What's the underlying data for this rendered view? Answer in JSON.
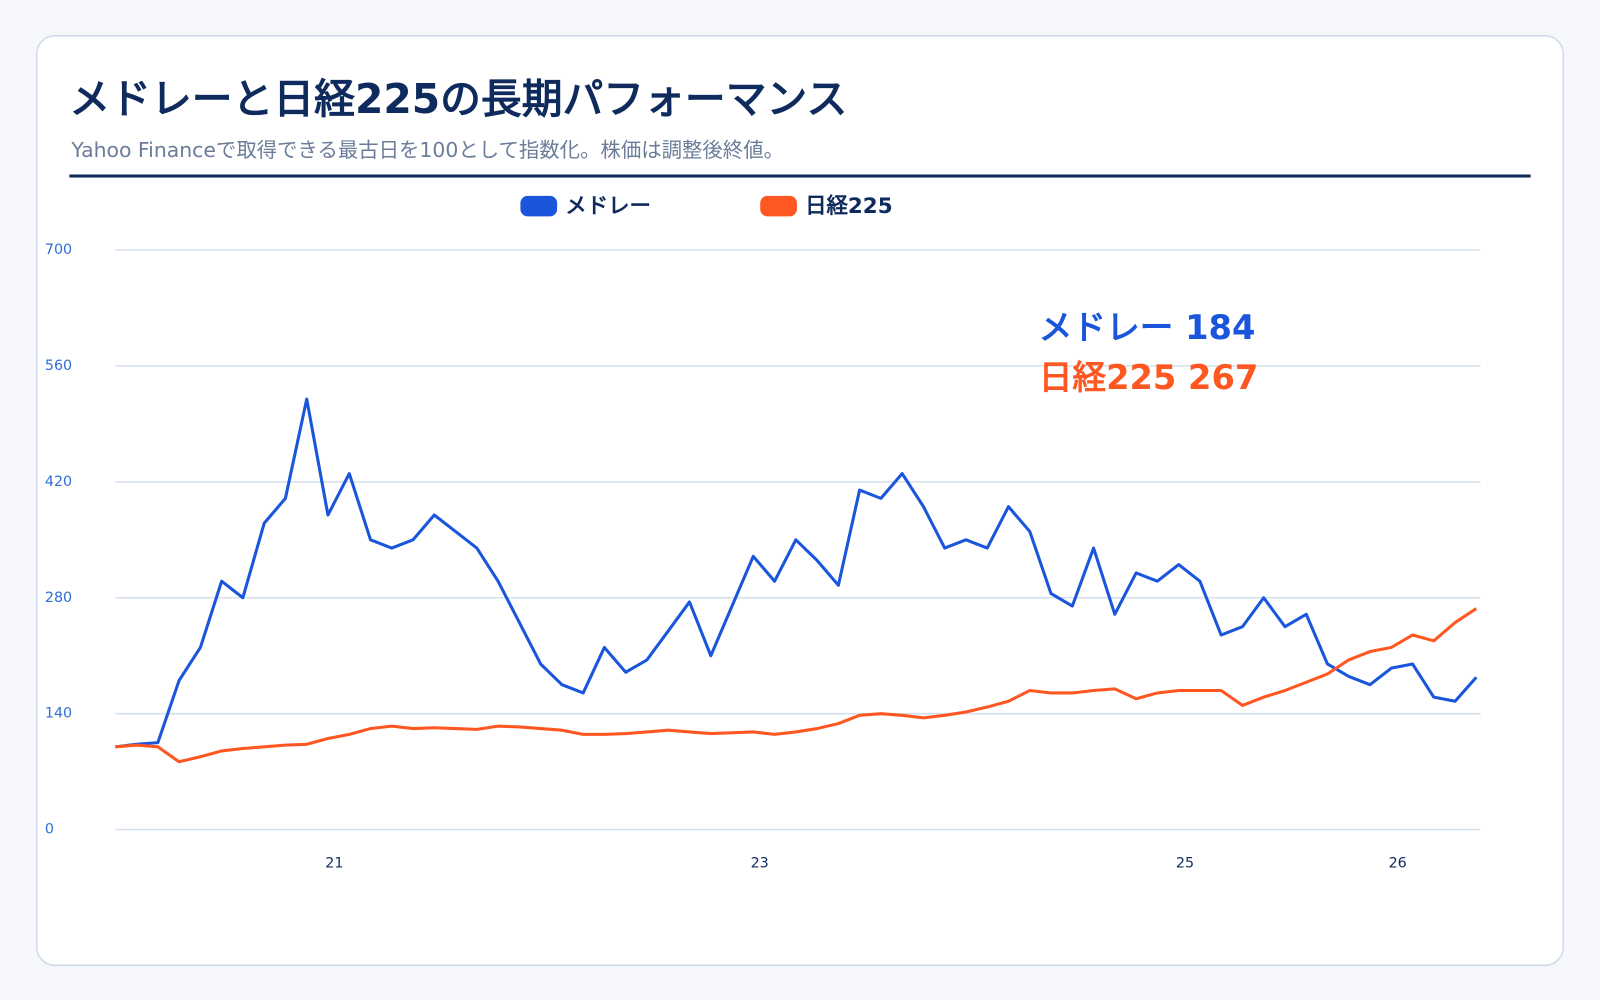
{
  "chart_data": {
    "type": "line",
    "title": "メドレーと日経225の長期パフォーマンス",
    "subtitle": "Yahoo Financeで取得できる最古日を100として指数化。株価は調整後終値。",
    "annotations": [
      "メドレー 184",
      "日経225 267"
    ],
    "x": [
      19.97,
      20.07,
      20.17,
      20.27,
      20.37,
      20.47,
      20.57,
      20.67,
      20.77,
      20.87,
      20.97,
      21.07,
      21.17,
      21.27,
      21.37,
      21.47,
      21.57,
      21.67,
      21.77,
      21.87,
      21.97,
      22.07,
      22.17,
      22.27,
      22.37,
      22.47,
      22.57,
      22.67,
      22.77,
      22.87,
      22.97,
      23.07,
      23.17,
      23.27,
      23.37,
      23.47,
      23.57,
      23.67,
      23.77,
      23.87,
      23.97,
      24.07,
      24.17,
      24.27,
      24.37,
      24.47,
      24.57,
      24.67,
      24.77,
      24.87,
      24.97,
      25.07,
      25.17,
      25.27,
      25.37,
      25.47,
      25.57,
      25.67,
      25.77,
      25.87,
      25.97,
      26.07,
      26.17,
      26.27,
      26.37
    ],
    "series": [
      {
        "name": "メドレー",
        "color": "#1a56db",
        "values": [
          100,
          103,
          105,
          180,
          220,
          300,
          280,
          370,
          400,
          520,
          380,
          430,
          350,
          340,
          350,
          380,
          360,
          340,
          300,
          250,
          200,
          175,
          165,
          220,
          190,
          205,
          240,
          275,
          210,
          270,
          330,
          300,
          350,
          325,
          295,
          410,
          400,
          430,
          390,
          340,
          350,
          340,
          390,
          360,
          285,
          270,
          340,
          260,
          310,
          300,
          320,
          300,
          235,
          245,
          280,
          245,
          260,
          200,
          185,
          175,
          195,
          200,
          160,
          155,
          184
        ]
      },
      {
        "name": "日経225",
        "color": "#ff5722",
        "values": [
          100,
          102,
          100,
          82,
          88,
          95,
          98,
          100,
          102,
          103,
          110,
          115,
          122,
          125,
          122,
          123,
          122,
          121,
          125,
          124,
          122,
          120,
          115,
          115,
          116,
          118,
          120,
          118,
          116,
          117,
          118,
          115,
          118,
          122,
          128,
          138,
          140,
          138,
          135,
          138,
          142,
          148,
          155,
          168,
          165,
          165,
          168,
          170,
          158,
          165,
          168,
          168,
          168,
          150,
          160,
          168,
          178,
          188,
          205,
          215,
          220,
          235,
          228,
          250,
          267
        ]
      }
    ],
    "xlim": [
      19.97,
      26.39
    ],
    "xticks": [
      21,
      23,
      25,
      26
    ],
    "ylim": [
      0,
      700
    ],
    "yticks": [
      0,
      140,
      280,
      420,
      560,
      700
    ],
    "grid": true,
    "legend": "top"
  }
}
